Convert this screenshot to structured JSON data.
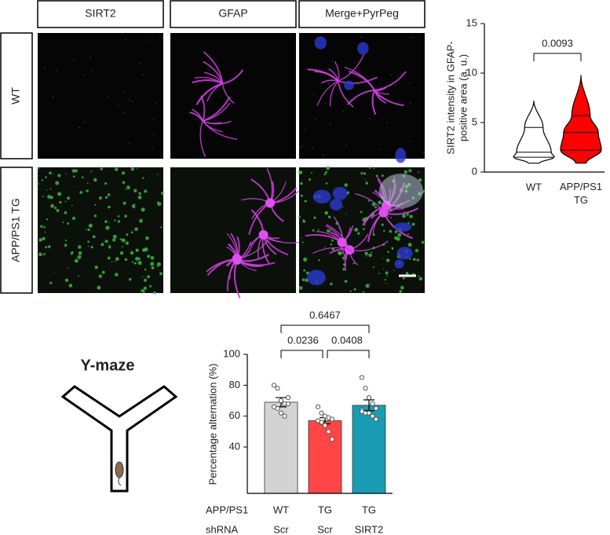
{
  "panels": {
    "columns": [
      "SIRT2",
      "GFAP",
      "Merge+PyrPeg"
    ],
    "rows": [
      "WT",
      "APP/PS1 TG"
    ]
  },
  "maze_title": "Y-maze",
  "chart_data": [
    {
      "type": "violin",
      "ylabel": [
        "SIRT2 intensity in GFAP-",
        "positive area (a. u.)"
      ],
      "categories": [
        "WT",
        "APP/PS1\nTG"
      ],
      "boxes": [
        {
          "min": 0.9,
          "q1": 1.5,
          "median": 2.0,
          "q3": 4.5,
          "max": 7.2,
          "color": "#ffffff"
        },
        {
          "min": 0.9,
          "q1": 2.2,
          "median": 4.0,
          "q3": 5.7,
          "max": 9.8,
          "color": "#ff0000"
        }
      ],
      "comparisons": [
        "0.0093"
      ],
      "ylim": [
        0,
        15
      ],
      "yticks": [
        0,
        5,
        10,
        15
      ]
    },
    {
      "type": "bar",
      "ylabel": "Percentage alternation (%)",
      "group_rows": [
        {
          "name": "APP/PS1",
          "labels": [
            "WT",
            "TG",
            "TG"
          ]
        },
        {
          "name": "shRNA",
          "labels": [
            "Scr",
            "Scr",
            "SIRT2"
          ]
        }
      ],
      "values": [
        69,
        57,
        67
      ],
      "errors": [
        3,
        2,
        3.5
      ],
      "points": [
        [
          80,
          78,
          70,
          68,
          68,
          66,
          65,
          62,
          60,
          72
        ],
        [
          66,
          62,
          60,
          59,
          58,
          57,
          56,
          54,
          50,
          45,
          57
        ],
        [
          85,
          78,
          72,
          68,
          65,
          64,
          62,
          62,
          60,
          58,
          63
        ]
      ],
      "colors": [
        "#d3d3d3",
        "#ff4545",
        "#1a9cb2"
      ],
      "comparisons": [
        "0.0236",
        "0.0408",
        "0.6467"
      ],
      "ylim": [
        10,
        100
      ],
      "yticks": [
        40,
        60,
        80,
        100
      ]
    }
  ]
}
